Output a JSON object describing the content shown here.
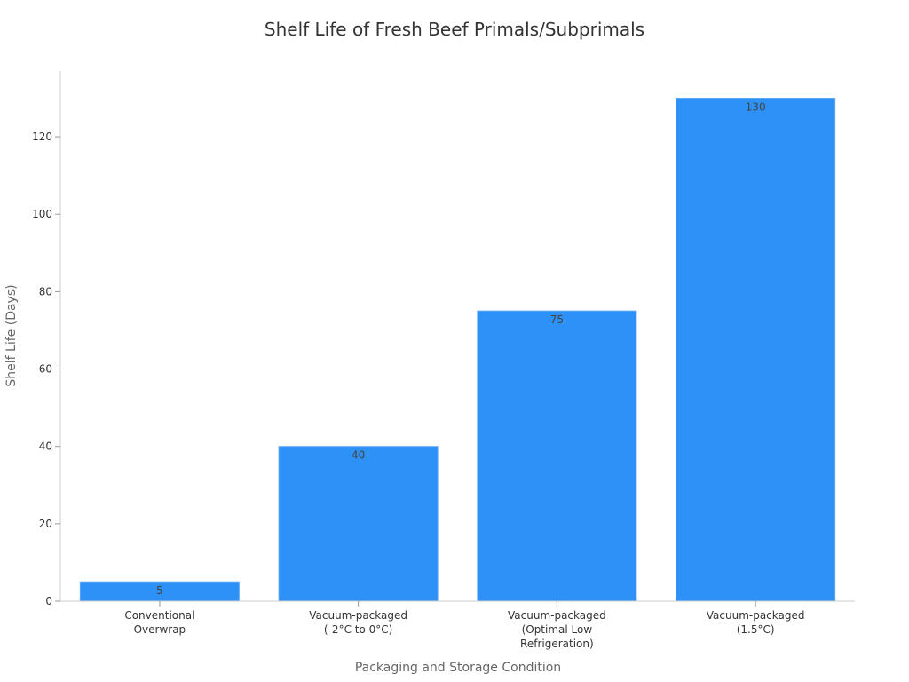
{
  "chart_data": {
    "type": "bar",
    "title": "Shelf Life of Fresh Beef Primals/Subprimals",
    "xlabel": "Packaging and Storage Condition",
    "ylabel": "Shelf Life (Days)",
    "categories": [
      [
        "Conventional",
        "Overwrap"
      ],
      [
        "Vacuum-packaged",
        "(-2°C to 0°C)"
      ],
      [
        "Vacuum-packaged",
        "(Optimal Low",
        "Refrigeration)"
      ],
      [
        "Vacuum-packaged",
        "(1.5°C)"
      ]
    ],
    "values": [
      5,
      40,
      75,
      130
    ],
    "data_labels": [
      "5",
      "40",
      "75",
      "130"
    ],
    "ylim": [
      0,
      137
    ],
    "yticks": [
      0,
      20,
      40,
      60,
      80,
      100,
      120
    ],
    "bar_color": "#2e91f7",
    "grid": false,
    "legend": "none"
  }
}
